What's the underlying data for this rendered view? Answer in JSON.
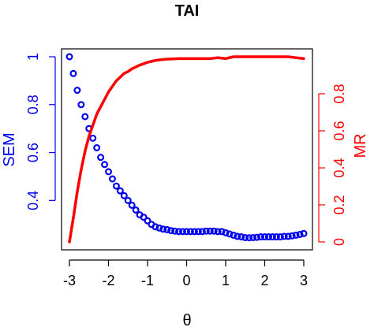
{
  "chart_data": {
    "type": "line",
    "title": "TAI",
    "xlabel": "θ",
    "ylabel_left": "SEM",
    "ylabel_right": "MR",
    "xlim": [
      -3,
      3
    ],
    "ylim_left": [
      0.23,
      1.0
    ],
    "ylim_right": [
      0,
      1.0
    ],
    "x_ticks": [
      "-3",
      "-2",
      "-1",
      "0",
      "1",
      "2",
      "3"
    ],
    "y_left_ticks": [
      "0.4",
      "0.6",
      "0.8",
      "1"
    ],
    "y_right_ticks": [
      "0",
      "0.2",
      "0.4",
      "0.6",
      "0.8"
    ],
    "grid": false,
    "series": [
      {
        "name": "SEM",
        "axis": "left",
        "style": "points",
        "color": "#0000ee",
        "x": [
          -3.0,
          -2.9,
          -2.8,
          -2.7,
          -2.6,
          -2.5,
          -2.4,
          -2.3,
          -2.2,
          -2.1,
          -2.0,
          -1.9,
          -1.8,
          -1.7,
          -1.6,
          -1.5,
          -1.4,
          -1.3,
          -1.2,
          -1.1,
          -1.0,
          -0.9,
          -0.8,
          -0.7,
          -0.6,
          -0.5,
          -0.4,
          -0.3,
          -0.2,
          -0.1,
          0.0,
          0.1,
          0.2,
          0.3,
          0.4,
          0.5,
          0.6,
          0.7,
          0.8,
          0.9,
          1.0,
          1.1,
          1.2,
          1.3,
          1.4,
          1.5,
          1.6,
          1.7,
          1.8,
          1.9,
          2.0,
          2.1,
          2.2,
          2.3,
          2.4,
          2.5,
          2.6,
          2.7,
          2.8,
          2.9,
          3.0
        ],
        "values": [
          1.0,
          0.93,
          0.86,
          0.8,
          0.75,
          0.7,
          0.66,
          0.62,
          0.58,
          0.55,
          0.52,
          0.49,
          0.46,
          0.44,
          0.42,
          0.4,
          0.38,
          0.36,
          0.34,
          0.33,
          0.315,
          0.3,
          0.29,
          0.285,
          0.28,
          0.278,
          0.274,
          0.272,
          0.27,
          0.27,
          0.27,
          0.27,
          0.27,
          0.27,
          0.27,
          0.272,
          0.272,
          0.272,
          0.27,
          0.27,
          0.265,
          0.26,
          0.255,
          0.25,
          0.248,
          0.245,
          0.244,
          0.245,
          0.246,
          0.248,
          0.248,
          0.248,
          0.248,
          0.248,
          0.248,
          0.25,
          0.25,
          0.252,
          0.255,
          0.258,
          0.262
        ]
      },
      {
        "name": "MR",
        "axis": "right",
        "style": "line",
        "color": "#ff0000",
        "x": [
          -3.0,
          -2.9,
          -2.8,
          -2.7,
          -2.6,
          -2.5,
          -2.4,
          -2.3,
          -2.2,
          -2.1,
          -2.0,
          -1.9,
          -1.8,
          -1.7,
          -1.6,
          -1.5,
          -1.4,
          -1.3,
          -1.2,
          -1.1,
          -1.0,
          -0.9,
          -0.8,
          -0.7,
          -0.6,
          -0.5,
          -0.4,
          -0.3,
          -0.2,
          -0.1,
          0.0,
          0.2,
          0.4,
          0.6,
          0.8,
          1.0,
          1.2,
          1.4,
          1.6,
          1.8,
          2.0,
          2.2,
          2.4,
          2.6,
          2.8,
          3.0
        ],
        "values": [
          0.0,
          0.13,
          0.27,
          0.39,
          0.49,
          0.57,
          0.63,
          0.69,
          0.73,
          0.77,
          0.81,
          0.84,
          0.87,
          0.89,
          0.91,
          0.92,
          0.935,
          0.945,
          0.955,
          0.962,
          0.97,
          0.975,
          0.98,
          0.983,
          0.985,
          0.987,
          0.988,
          0.989,
          0.99,
          0.99,
          0.99,
          0.99,
          0.99,
          0.99,
          0.995,
          0.99,
          1.0,
          1.0,
          1.0,
          1.0,
          1.0,
          1.0,
          1.0,
          1.0,
          0.995,
          0.99
        ]
      }
    ]
  }
}
